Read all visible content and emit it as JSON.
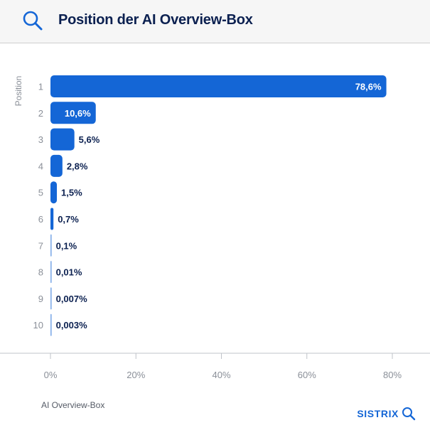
{
  "header": {
    "title": "Position der AI Overview-Box",
    "icon": "search-icon"
  },
  "footer": {
    "series_label": "AI Overview-Box",
    "brand": "SISTRIX",
    "brand_icon": "search-icon"
  },
  "colors": {
    "bar": "#1466d6",
    "title": "#0b2050",
    "axis_text": "#8a8f98",
    "label_dark": "#0b2050",
    "label_light": "#ffffff"
  },
  "chart_data": {
    "type": "bar",
    "orientation": "horizontal",
    "title": "Position der AI Overview-Box",
    "ylabel": "Position",
    "xlabel": "",
    "categories": [
      "1",
      "2",
      "3",
      "4",
      "5",
      "6",
      "7",
      "8",
      "9",
      "10"
    ],
    "series": [
      {
        "name": "AI Overview-Box",
        "values": [
          78.6,
          10.6,
          5.6,
          2.8,
          1.5,
          0.7,
          0.1,
          0.01,
          0.007,
          0.003
        ],
        "labels": [
          "78,6%",
          "10,6%",
          "5,6%",
          "2,8%",
          "1,5%",
          "0,7%",
          "0,1%",
          "0,01%",
          "0,007%",
          "0,003%"
        ]
      }
    ],
    "xlim": [
      0,
      80
    ],
    "x_ticks": [
      0,
      20,
      40,
      60,
      80
    ],
    "x_tick_labels": [
      "0%",
      "20%",
      "40%",
      "60%",
      "80%"
    ],
    "grid": false,
    "legend": "bottom-left"
  }
}
